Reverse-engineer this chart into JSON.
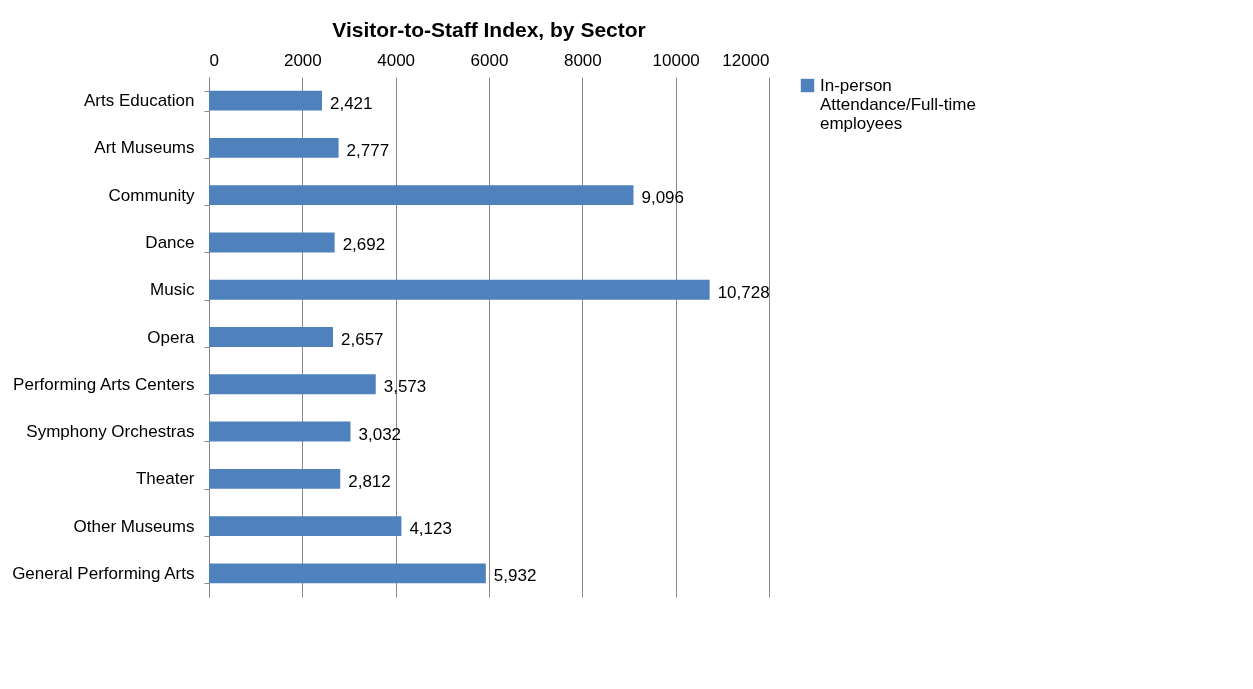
{
  "chart_data": {
    "type": "bar",
    "orientation": "horizontal",
    "title": "Visitor-to-Staff Index, by Sector",
    "categories": [
      "Arts Education",
      "Art Museums",
      "Community",
      "Dance",
      "Music",
      "Opera",
      "Performing Arts Centers",
      "Symphony Orchestras",
      "Theater",
      "Other Museums",
      "General Performing Arts"
    ],
    "series": [
      {
        "name": "In-person Attendance/Full-time employees",
        "color": "#4f81bd",
        "values": [
          2421,
          2777,
          9096,
          2692,
          10728,
          2657,
          3573,
          3032,
          2812,
          4123,
          5932
        ],
        "value_labels": [
          "2,421",
          "2,777",
          "9,096",
          "2,692",
          "10,728",
          "2,657",
          "3,573",
          "3,032",
          "2,812",
          "4,123",
          "5,932"
        ]
      }
    ],
    "xlim": [
      0,
      12000
    ],
    "xticks": [
      0,
      2000,
      4000,
      6000,
      8000,
      10000,
      12000
    ],
    "grid": "x",
    "legend": "right"
  }
}
